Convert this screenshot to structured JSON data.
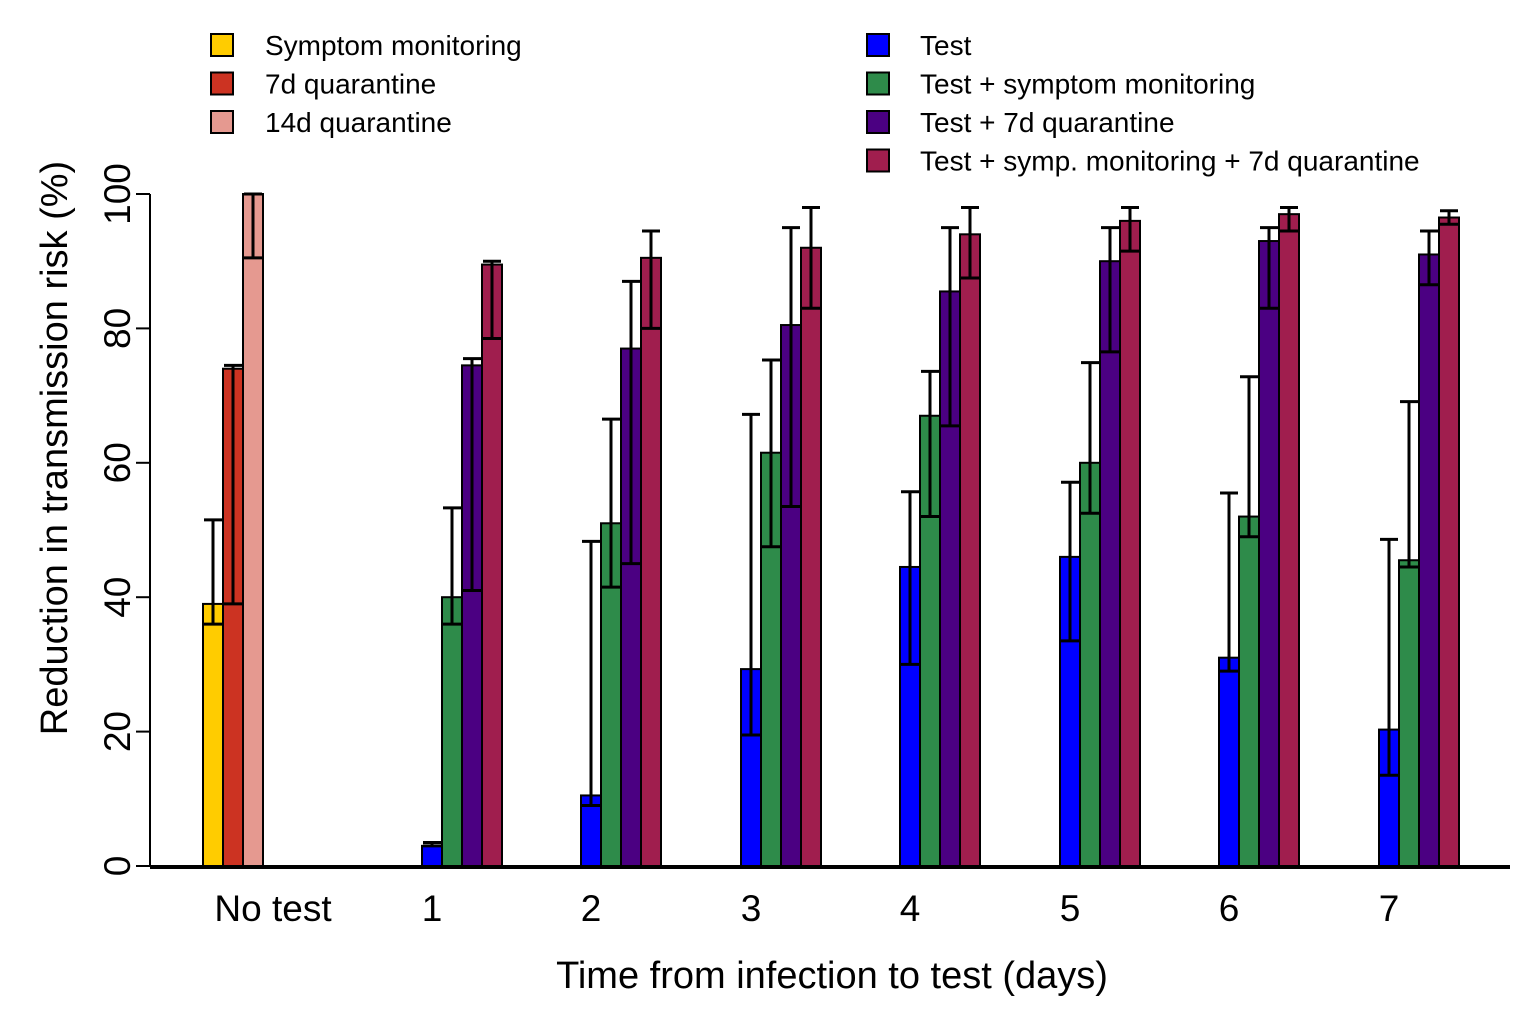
{
  "chart_data": {
    "type": "bar",
    "xlabel": "Time from infection to test (days)",
    "ylabel": "Reduction in transmission risk (%)",
    "ylim": [
      0,
      100
    ],
    "yticks": [
      0,
      20,
      40,
      60,
      80,
      100
    ],
    "categories": [
      "No test",
      "1",
      "2",
      "3",
      "4",
      "5",
      "6",
      "7"
    ],
    "series": [
      {
        "name": "Symptom monitoring",
        "color": "#FFCC00",
        "group": "no-test",
        "values": [
          39,
          null,
          null,
          null,
          null,
          null,
          null,
          null
        ],
        "lower": [
          36,
          null,
          null,
          null,
          null,
          null,
          null,
          null
        ],
        "upper": [
          51.5,
          null,
          null,
          null,
          null,
          null,
          null,
          null
        ]
      },
      {
        "name": "7d quarantine",
        "color": "#CC3322",
        "group": "no-test",
        "values": [
          74,
          null,
          null,
          null,
          null,
          null,
          null,
          null
        ],
        "lower": [
          39,
          null,
          null,
          null,
          null,
          null,
          null,
          null
        ],
        "upper": [
          74.5,
          null,
          null,
          null,
          null,
          null,
          null,
          null
        ]
      },
      {
        "name": "14d quarantine",
        "color": "#E59990",
        "group": "no-test",
        "values": [
          100,
          null,
          null,
          null,
          null,
          null,
          null,
          null
        ],
        "lower": [
          90.5,
          null,
          null,
          null,
          null,
          null,
          null,
          null
        ],
        "upper": [
          100,
          null,
          null,
          null,
          null,
          null,
          null,
          null
        ]
      },
      {
        "name": "Test",
        "color": "#0000FF",
        "group": "test",
        "values": [
          null,
          3,
          10.5,
          29.3,
          44.5,
          46,
          31,
          20.3
        ],
        "lower": [
          null,
          3,
          9,
          19.5,
          30,
          33.5,
          29,
          13.5
        ],
        "upper": [
          null,
          3.5,
          48.3,
          67.2,
          55.7,
          57.1,
          55.5,
          48.6
        ]
      },
      {
        "name": "Test + symptom monitoring",
        "color": "#2E8B4A",
        "group": "test",
        "values": [
          null,
          40,
          51,
          61.5,
          67,
          60,
          52,
          45.5
        ],
        "lower": [
          null,
          36,
          41.5,
          47.5,
          52,
          52.5,
          49,
          44.5
        ],
        "upper": [
          null,
          53.3,
          66.5,
          75.3,
          73.6,
          74.9,
          72.8,
          69.1
        ]
      },
      {
        "name": "Test + 7d quarantine",
        "color": "#4B0082",
        "group": "test",
        "values": [
          null,
          74.5,
          77,
          80.5,
          85.5,
          90,
          93,
          91
        ],
        "lower": [
          null,
          41,
          45,
          53.5,
          65.5,
          76.5,
          83,
          86.5
        ],
        "upper": [
          null,
          75.5,
          87,
          95,
          95,
          95,
          95,
          94.5
        ]
      },
      {
        "name": "Test + symp. monitoring + 7d quarantine",
        "color": "#A01E4E",
        "group": "test",
        "values": [
          null,
          89.5,
          90.5,
          92,
          94,
          96,
          97,
          96.5
        ],
        "lower": [
          null,
          78.5,
          80,
          83,
          87.5,
          91.5,
          94.5,
          95.5
        ],
        "upper": [
          null,
          90,
          94.5,
          98,
          98,
          98,
          98,
          97.5
        ]
      }
    ],
    "legend": {
      "placement": "top",
      "columns": 2
    }
  }
}
